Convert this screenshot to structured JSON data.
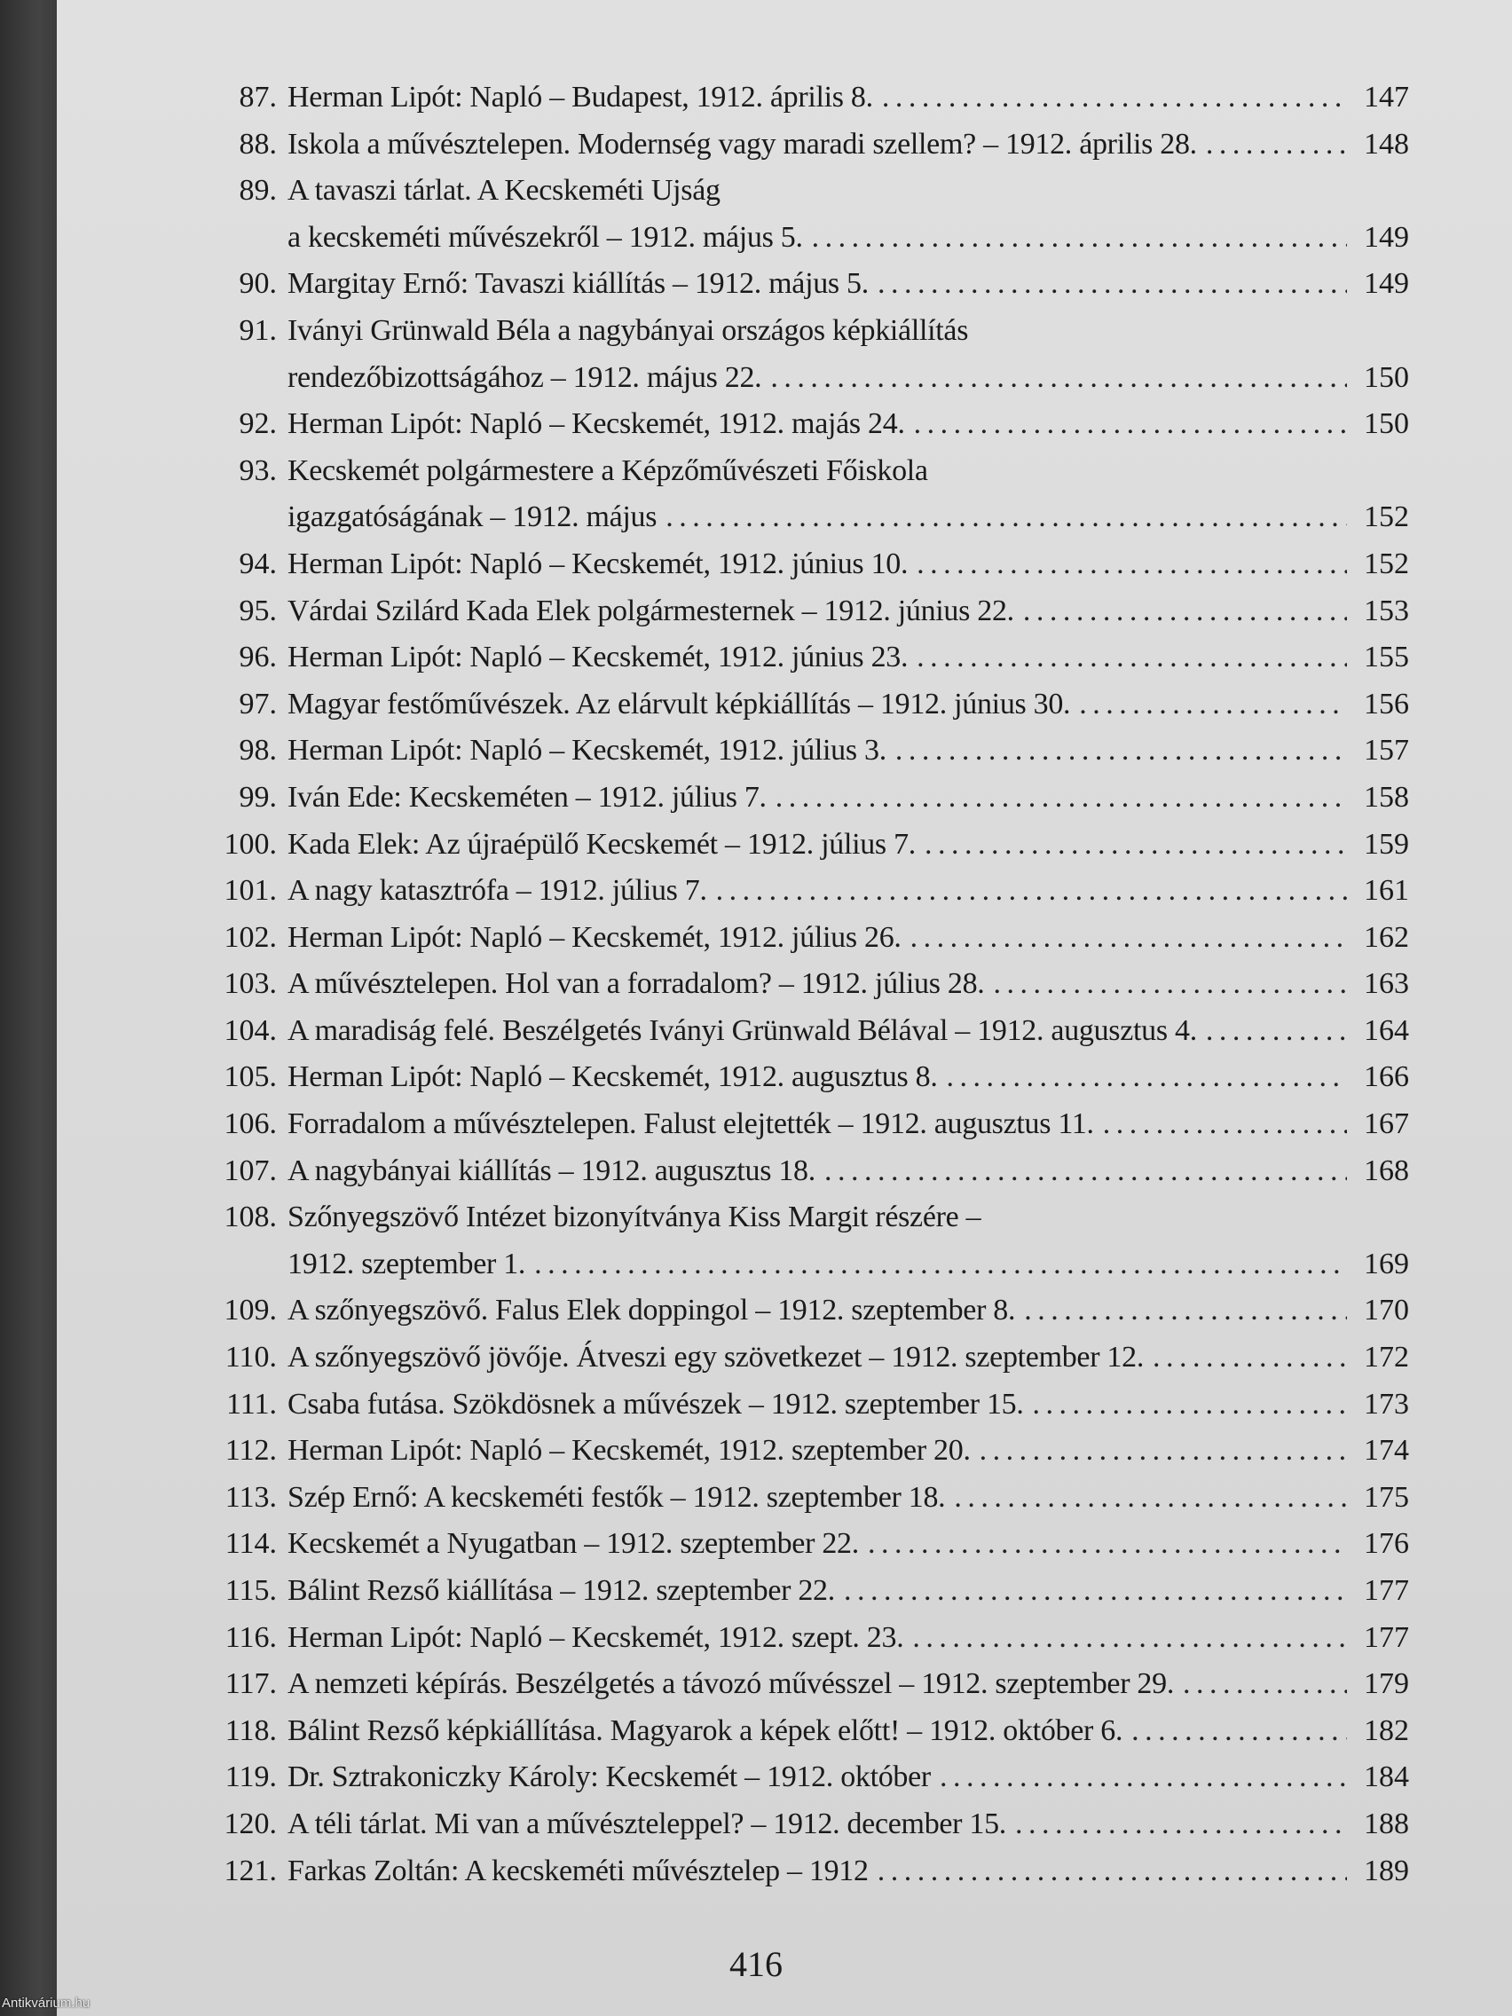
{
  "entries": [
    {
      "num": "87.",
      "lines": [
        "Herman Lipót: Napló – Budapest, 1912. április 8."
      ],
      "page": "147"
    },
    {
      "num": "88.",
      "lines": [
        "Iskola a művésztelepen. Modernség vagy maradi szellem? – 1912. április 28."
      ],
      "page": "148"
    },
    {
      "num": "89.",
      "lines": [
        "A tavaszi tárlat. A Kecskeméti Ujság",
        "a kecskeméti művészekről – 1912. május 5."
      ],
      "page": "149"
    },
    {
      "num": "90.",
      "lines": [
        "Margitay Ernő: Tavaszi kiállítás – 1912. május 5."
      ],
      "page": "149"
    },
    {
      "num": "91.",
      "lines": [
        "Iványi Grünwald Béla a nagybányai országos képkiállítás",
        "rendezőbizottságához – 1912. május 22."
      ],
      "page": "150"
    },
    {
      "num": "92.",
      "lines": [
        "Herman Lipót: Napló – Kecskemét, 1912. majás 24."
      ],
      "page": "150"
    },
    {
      "num": "93.",
      "lines": [
        "Kecskemét polgármestere a Képzőművészeti Főiskola",
        "igazgatóságának – 1912. május"
      ],
      "page": "152"
    },
    {
      "num": "94.",
      "lines": [
        "Herman Lipót: Napló – Kecskemét, 1912. június 10."
      ],
      "page": "152"
    },
    {
      "num": "95.",
      "lines": [
        "Várdai Szilárd Kada Elek polgármesternek – 1912. június 22."
      ],
      "page": "153"
    },
    {
      "num": "96.",
      "lines": [
        "Herman Lipót: Napló – Kecskemét, 1912. június 23."
      ],
      "page": "155"
    },
    {
      "num": "97.",
      "lines": [
        "Magyar festőművészek. Az elárvult képkiállítás – 1912. június 30."
      ],
      "page": "156"
    },
    {
      "num": "98.",
      "lines": [
        "Herman Lipót: Napló – Kecskemét, 1912. július 3."
      ],
      "page": "157"
    },
    {
      "num": "99.",
      "lines": [
        "Iván Ede: Kecskeméten – 1912. július 7."
      ],
      "page": "158"
    },
    {
      "num": "100.",
      "lines": [
        "Kada Elek: Az újraépülő Kecskemét – 1912. július 7."
      ],
      "page": "159"
    },
    {
      "num": "101.",
      "lines": [
        "A nagy katasztrófa – 1912. július 7."
      ],
      "page": "161"
    },
    {
      "num": "102.",
      "lines": [
        "Herman Lipót: Napló – Kecskemét, 1912. július 26."
      ],
      "page": "162"
    },
    {
      "num": "103.",
      "lines": [
        "A művésztelepen. Hol van a forradalom? – 1912. július 28."
      ],
      "page": "163"
    },
    {
      "num": "104.",
      "lines": [
        "A maradiság felé. Beszélgetés Iványi Grünwald Bélával – 1912. augusztus 4."
      ],
      "page": "164"
    },
    {
      "num": "105.",
      "lines": [
        "Herman Lipót: Napló – Kecskemét, 1912. augusztus 8."
      ],
      "page": "166"
    },
    {
      "num": "106.",
      "lines": [
        "Forradalom a művésztelepen. Falust elejtették – 1912. augusztus 11."
      ],
      "page": "167"
    },
    {
      "num": "107.",
      "lines": [
        "A nagybányai kiállítás – 1912. augusztus 18."
      ],
      "page": "168"
    },
    {
      "num": "108.",
      "lines": [
        "Szőnyegszövő Intézet bizonyítványa Kiss Margit részére –",
        "1912. szeptember 1."
      ],
      "page": "169"
    },
    {
      "num": "109.",
      "lines": [
        "A szőnyegszövő. Falus Elek doppingol – 1912. szeptember 8."
      ],
      "page": "170"
    },
    {
      "num": "110.",
      "lines": [
        "A szőnyegszövő jövője. Átveszi egy szövetkezet – 1912. szeptember 12."
      ],
      "page": "172"
    },
    {
      "num": "111.",
      "lines": [
        "Csaba futása. Szökdösnek a művészek – 1912. szeptember 15."
      ],
      "page": "173"
    },
    {
      "num": "112.",
      "lines": [
        "Herman Lipót: Napló – Kecskemét, 1912. szeptember 20."
      ],
      "page": "174"
    },
    {
      "num": "113.",
      "lines": [
        "Szép Ernő: A kecskeméti festők – 1912. szeptember 18."
      ],
      "page": "175"
    },
    {
      "num": "114.",
      "lines": [
        "Kecskemét a Nyugatban – 1912. szeptember 22."
      ],
      "page": "176"
    },
    {
      "num": "115.",
      "lines": [
        "Bálint Rezső kiállítása – 1912. szeptember 22."
      ],
      "page": "177"
    },
    {
      "num": "116.",
      "lines": [
        "Herman Lipót: Napló – Kecskemét, 1912. szept. 23."
      ],
      "page": "177"
    },
    {
      "num": "117.",
      "lines": [
        "A nemzeti képírás. Beszélgetés a távozó művésszel – 1912. szeptember 29."
      ],
      "page": "179"
    },
    {
      "num": "118.",
      "lines": [
        "Bálint Rezső képkiállítása. Magyarok a képek előtt! – 1912. október 6."
      ],
      "page": "182"
    },
    {
      "num": "119.",
      "lines": [
        "Dr. Sztrakoniczky Károly: Kecskemét – 1912. október"
      ],
      "page": "184"
    },
    {
      "num": "120.",
      "lines": [
        "A téli tárlat. Mi van a művészteleppel? – 1912. december 15."
      ],
      "page": "188"
    },
    {
      "num": "121.",
      "lines": [
        "Farkas Zoltán: A kecskeméti művésztelep – 1912"
      ],
      "page": "189"
    }
  ],
  "folio": "416",
  "watermark": "Antikvárium.hu"
}
